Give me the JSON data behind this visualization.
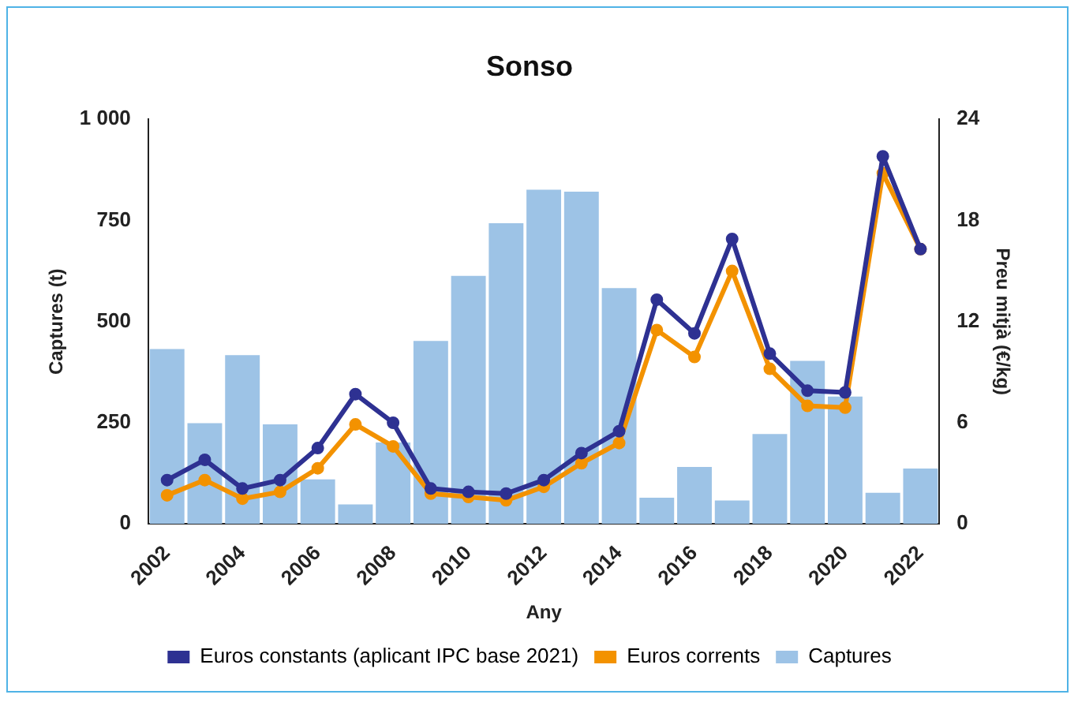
{
  "chart_data": {
    "type": "bar",
    "title": "Sonso",
    "xlabel": "Any",
    "ylabel": "Captures (t)",
    "y2label": "Preu mitjà (€/kg)",
    "categories": [
      "2002",
      null,
      "2004",
      null,
      "2006",
      null,
      "2008",
      null,
      "2010",
      null,
      "2012",
      null,
      "2014",
      null,
      "2016",
      null,
      "2018",
      null,
      "2020",
      null,
      "2022"
    ],
    "series": [
      {
        "name": "Euros constants (aplicant IPC base 2021)",
        "type": "line",
        "axis": "y2",
        "color": "#2e3192",
        "values": [
          2.6,
          3.8,
          2.1,
          2.6,
          4.5,
          7.7,
          6.0,
          2.1,
          1.9,
          1.8,
          2.6,
          4.2,
          5.5,
          13.3,
          11.3,
          16.9,
          10.1,
          7.9,
          7.8,
          21.8,
          16.3
        ]
      },
      {
        "name": "Euros corrents",
        "type": "line",
        "axis": "y2",
        "color": "#f39200",
        "values": [
          1.7,
          2.6,
          1.5,
          1.9,
          3.3,
          5.9,
          4.6,
          1.8,
          1.6,
          1.4,
          2.2,
          3.6,
          4.8,
          11.5,
          9.9,
          15.0,
          9.2,
          7.0,
          6.9,
          20.8,
          16.3
        ]
      },
      {
        "name": "Captures",
        "color": "#9dc3e6",
        "values": [
          432,
          249,
          417,
          246,
          110,
          48,
          201,
          452,
          613,
          743,
          826,
          821,
          583,
          65,
          141,
          58,
          222,
          403,
          315,
          77,
          137
        ]
      }
    ],
    "ylim": [
      0,
      1000
    ],
    "yticks": [
      0,
      250,
      500,
      750,
      {
        "value": 1000,
        "label": "1 000"
      }
    ],
    "y2lim": [
      0,
      24
    ],
    "y2ticks": [
      0,
      6,
      12,
      18,
      24
    ],
    "grid": false,
    "legend": "bottom",
    "marker": "circle",
    "line_style": "solid"
  }
}
